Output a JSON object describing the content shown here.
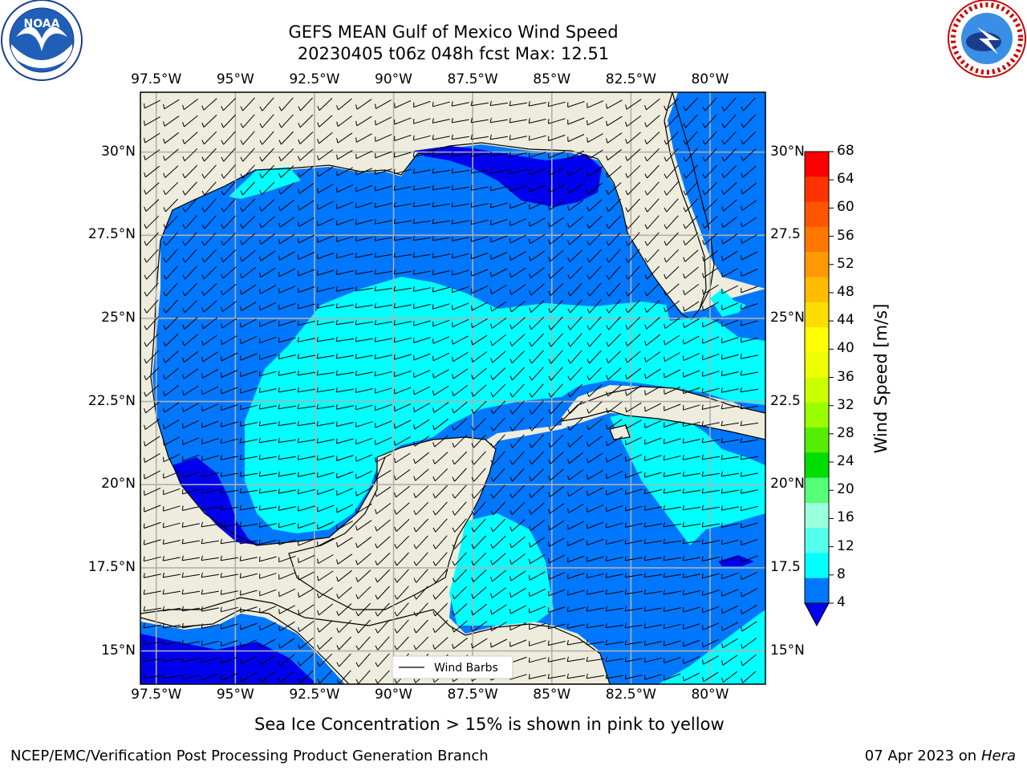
{
  "header": {
    "title_line1": "GEFS MEAN Gulf of Mexico Wind Speed",
    "title_line2": "20230405 t06z 048h fcst   Max: 12.51"
  },
  "logos": {
    "left": {
      "name": "NOAA",
      "ring_text": "NATIONAL OCEANIC AND ATMOSPHERIC ADMINISTRATION · U.S. DEPARTMENT OF COMMERCE"
    },
    "right": {
      "name": "NATIONAL WEATHER SERVICE"
    }
  },
  "map": {
    "lon_labels": [
      "97.5°W",
      "95°W",
      "92.5°W",
      "90°W",
      "87.5°W",
      "85°W",
      "82.5°W",
      "80°W"
    ],
    "lat_labels_left": [
      "30°N",
      "27.5°N",
      "25°N",
      "22.5°N",
      "20°N",
      "17.5°N",
      "15°N"
    ],
    "lat_labels_right": [
      "30°N",
      "27.5",
      "25°N",
      "22.5",
      "20°N",
      "17.5",
      "15°N"
    ],
    "lon_range": [
      -98,
      -78.25
    ],
    "lat_range": [
      14,
      31.8
    ],
    "legend_label": "Wind Barbs",
    "land_color": "#eeecdc",
    "grid_color": "#b0b0b0"
  },
  "colorbar": {
    "label": "Wind Speed [m/s]",
    "ticks": [
      "68",
      "64",
      "60",
      "56",
      "52",
      "48",
      "44",
      "40",
      "36",
      "32",
      "28",
      "24",
      "20",
      "16",
      "12",
      "8",
      "4"
    ],
    "colors_top_to_bottom": [
      "#ff0000",
      "#ff3300",
      "#ff5500",
      "#ff7700",
      "#ff9900",
      "#ffbb00",
      "#ffdd00",
      "#ffff00",
      "#eeff00",
      "#ccff00",
      "#99ff00",
      "#55ee00",
      "#00dd00",
      "#55ff77",
      "#99ffdd",
      "#55ffee",
      "#00ffff",
      "#0077ff"
    ],
    "extend_color": "#0000ee"
  },
  "chart_data": {
    "type": "heatmap",
    "title": "GEFS MEAN Gulf of Mexico Wind Speed",
    "subtitle": "20230405 t06z 048h fcst   Max: 12.51",
    "variable": "Wind Speed [m/s]",
    "levels": [
      4,
      8,
      12,
      16,
      20,
      24,
      28,
      32,
      36,
      40,
      44,
      48,
      52,
      56,
      60,
      64,
      68
    ],
    "max_value": 12.51,
    "xlim": [
      "97.5°W",
      "78.5°W"
    ],
    "ylim": [
      "15°N",
      "31.5°N"
    ],
    "grid": true
  },
  "footer": {
    "caption": "Sea Ice Concentration > 15% is shown in pink to yellow",
    "left": "NCEP/EMC/Verification Post Processing Product Generation Branch",
    "date": "07 Apr 2023 on ",
    "host": "Hera"
  }
}
